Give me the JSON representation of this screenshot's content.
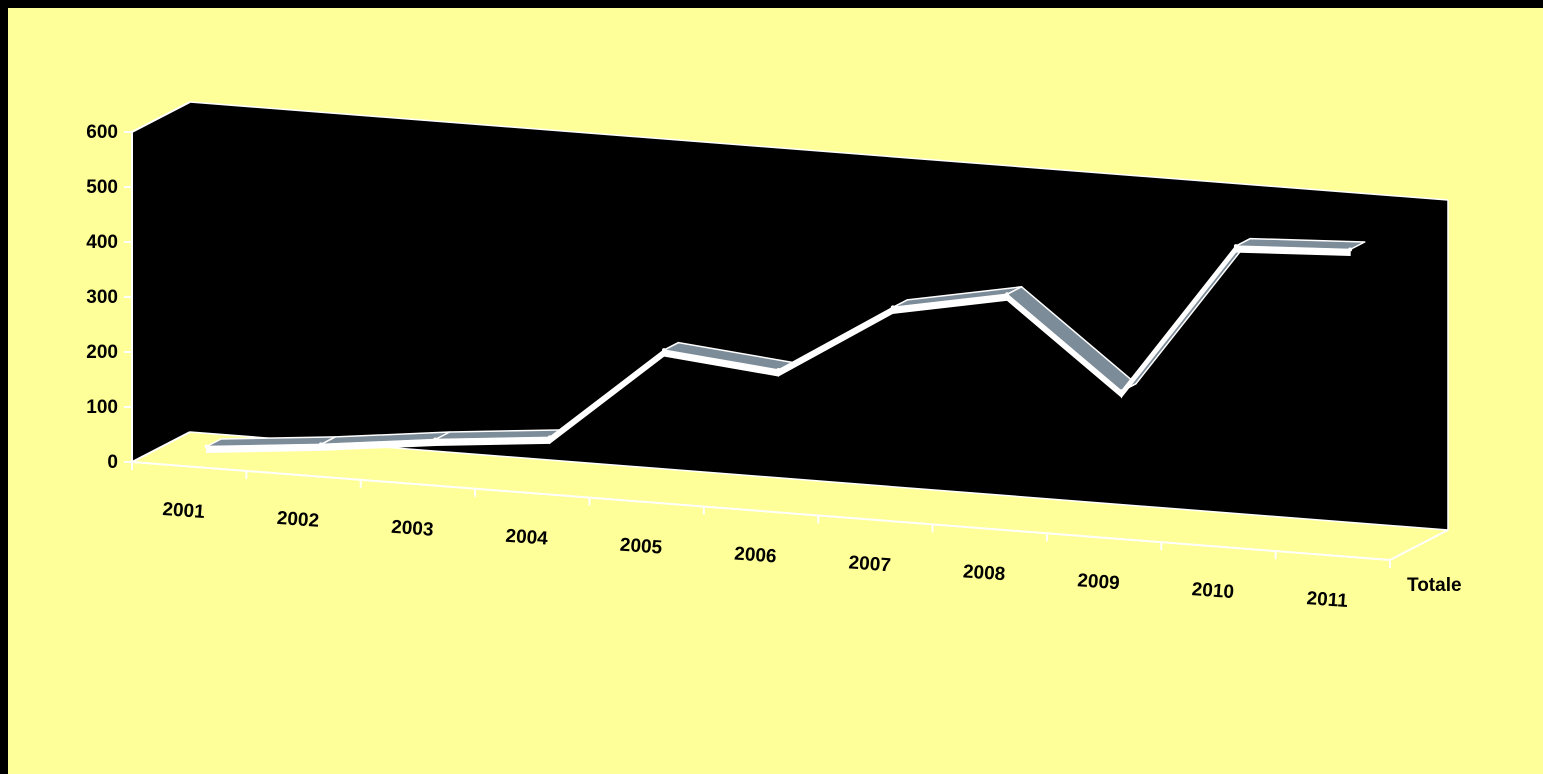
{
  "colors": {
    "background": "#FFFF99",
    "frame": "#000000",
    "plot_wall": "#000000",
    "ribbon_top": "#7D8C99",
    "ribbon_edge": "#FFFFFF",
    "axis_line": "#FFFFFF",
    "text": "#000000"
  },
  "chart_data": {
    "type": "line",
    "style": "3d-ribbon",
    "title": "",
    "xlabel": "",
    "ylabel": "",
    "categories": [
      "2001",
      "2002",
      "2003",
      "2004",
      "2005",
      "2006",
      "2007",
      "2008",
      "2009",
      "2010",
      "2011"
    ],
    "series": [
      {
        "name": "Totale",
        "values": [
          20,
          40,
          65,
          85,
          260,
          240,
          370,
          410,
          250,
          530,
          540
        ]
      }
    ],
    "y_ticks": [
      "0",
      "100",
      "200",
      "300",
      "400",
      "500",
      "600"
    ],
    "ylim": [
      0,
      600
    ],
    "depth_label": "Totale",
    "grid": false,
    "legend": "none"
  }
}
